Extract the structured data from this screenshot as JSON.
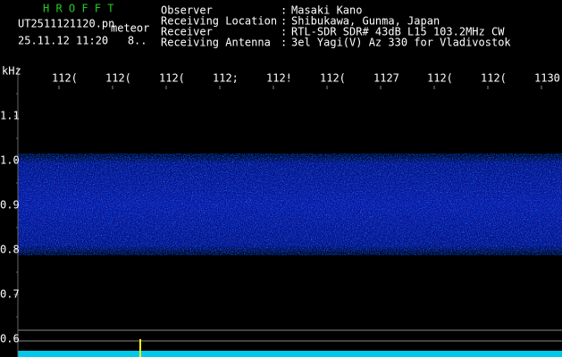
{
  "header": {
    "program": "H R O F F T",
    "file": "UT2511121120.pn",
    "mode": "meteor",
    "timestamp": "25.11.12 11:20   8..",
    "fields": [
      {
        "label": "Observer",
        "value": "Masaki Kano"
      },
      {
        "label": "Receiving Location",
        "value": "Shibukawa, Gunma, Japan"
      },
      {
        "label": "Receiver",
        "value": "RTL-SDR SDR# 43dB L15 103.2MHz CW"
      },
      {
        "label": "Receiving Antenna",
        "value": "3el Yagi(V) Az 330 for Vladivostok"
      }
    ],
    "separator": ":"
  },
  "axis": {
    "unit": "kHz",
    "x_labels": [
      "112(",
      "112(",
      "112(",
      "112;",
      "112!",
      "112(",
      "1127",
      "112(",
      "112(",
      "1130"
    ],
    "y_labels": [
      "1.1",
      "1.0",
      "0.9",
      "0.8",
      "0.7",
      "0.6"
    ]
  }
}
